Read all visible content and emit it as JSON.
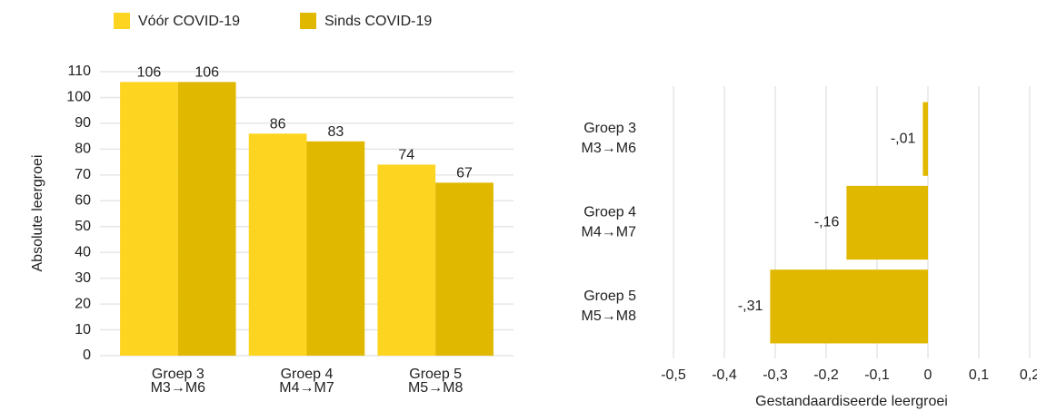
{
  "chart_data": [
    {
      "type": "bar",
      "categories": [
        "Groep 3\nM3→M6",
        "Groep 4\nM4→M7",
        "Groep 5\nM5→M8"
      ],
      "series": [
        {
          "name": "Vóór COVID-19",
          "color": "#fdd520",
          "values": [
            106,
            86,
            74
          ]
        },
        {
          "name": "Sinds COVID-19",
          "color": "#e0b800",
          "values": [
            106,
            83,
            67
          ]
        }
      ],
      "y_label": "Absolute leergroei",
      "ylim": [
        0,
        110
      ],
      "yticks": [
        0,
        10,
        20,
        30,
        40,
        50,
        60,
        70,
        80,
        90,
        100,
        110
      ],
      "grid": true,
      "legend": "top"
    },
    {
      "type": "hbar",
      "categories": [
        "Groep 3\nM3→M6",
        "Groep 4\nM4→M7",
        "Groep 5\nM5→M8"
      ],
      "values": [
        -0.01,
        -0.16,
        -0.31
      ],
      "value_labels": [
        "-,01",
        "-,16",
        "-,31"
      ],
      "color": "#e0b800",
      "x_label": "Gestandaardiseerde leergroei",
      "xlim": [
        -0.5,
        0.2
      ],
      "xticks": [
        {
          "value": -0.5,
          "label": "-0,5"
        },
        {
          "value": -0.4,
          "label": "-0,4"
        },
        {
          "value": -0.3,
          "label": "-0,3"
        },
        {
          "value": -0.2,
          "label": "-0,2"
        },
        {
          "value": -0.1,
          "label": "-0,1"
        },
        0,
        {
          "value": 0.1,
          "label": "0,1"
        },
        {
          "value": 0.2,
          "label": "0,2"
        }
      ],
      "grid": true
    }
  ]
}
